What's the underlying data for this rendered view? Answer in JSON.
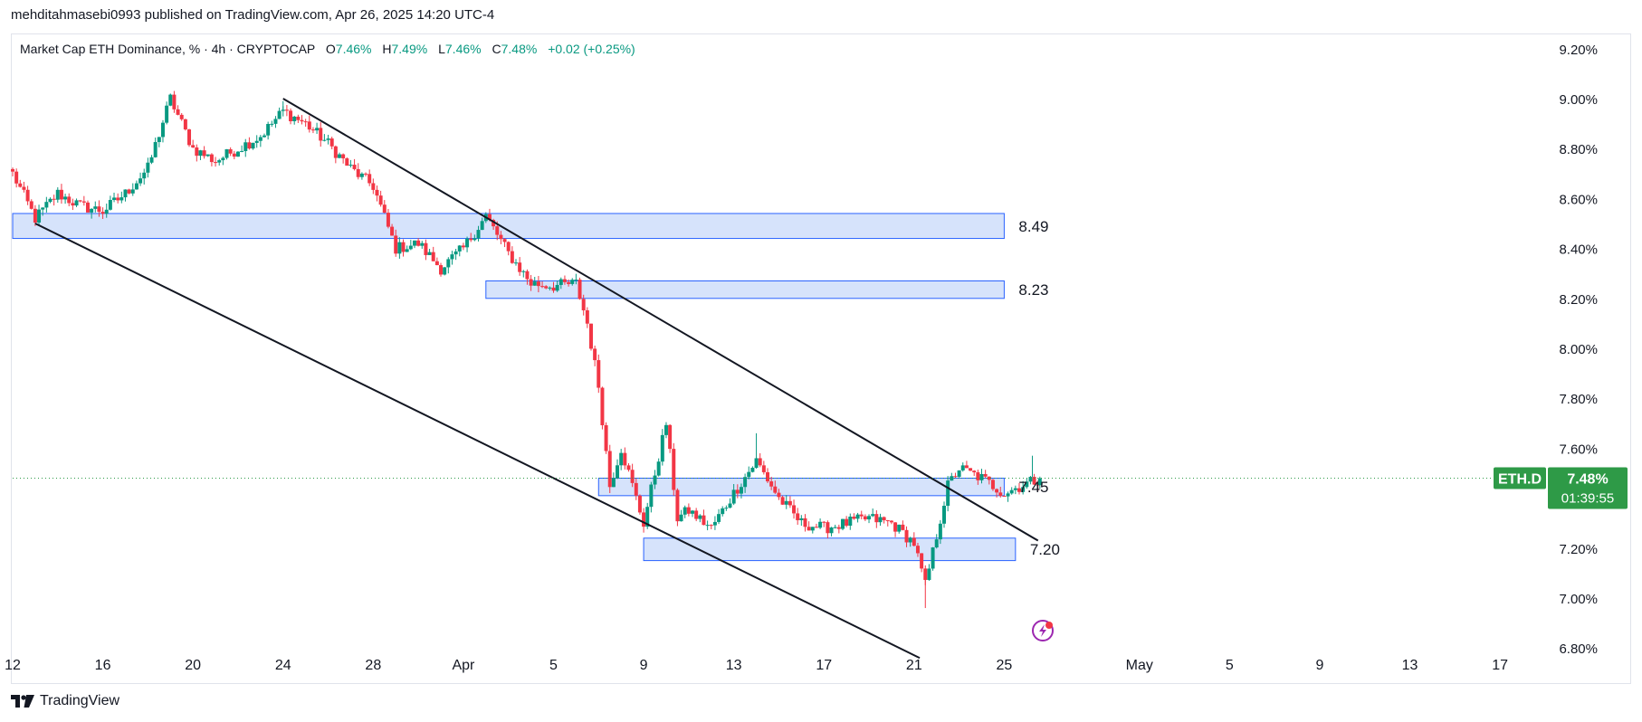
{
  "header": {
    "text": "mehditahmasebi0993 published on TradingView.com, Apr 26, 2025 14:20 UTC-4"
  },
  "legend": {
    "symbol": "Market Cap ETH Dominance, % · 4h · CRYPTOCAP",
    "open_label": "O",
    "open": "7.46%",
    "high_label": "H",
    "high": "7.49%",
    "low_label": "L",
    "low": "7.46%",
    "close_label": "C",
    "close": "7.48%",
    "change": "+0.02 (+0.25%)"
  },
  "footer": {
    "brand": "TradingView"
  },
  "colors": {
    "up": "#089981",
    "down": "#f23645",
    "zone_fill": "#d1e0fb",
    "zone_border": "#2962ff",
    "trendline": "#131722",
    "badge": "#2e9a47"
  },
  "price_badge": {
    "symbol": "ETH.D",
    "price": "7.48%",
    "countdown": "01:39:55"
  },
  "chart_data": {
    "type": "candlestick",
    "interval": "4h",
    "y_axis": {
      "side": "right",
      "ylim": [
        6.75,
        9.25
      ],
      "ticks": [
        6.8,
        7.0,
        7.2,
        7.4,
        7.6,
        7.8,
        8.0,
        8.2,
        8.4,
        8.6,
        8.8,
        9.0,
        9.2
      ],
      "tick_labels": [
        "6.80%",
        "7.00%",
        "7.20%",
        "7.40%",
        "7.60%",
        "7.80%",
        "8.00%",
        "8.20%",
        "8.40%",
        "8.60%",
        "8.80%",
        "9.00%",
        "9.20%"
      ]
    },
    "x_axis": {
      "range": [
        "2025-03-12",
        "2025-05-18"
      ],
      "ticks": [
        {
          "date": "2025-03-12",
          "label": "12"
        },
        {
          "date": "2025-03-16",
          "label": "16"
        },
        {
          "date": "2025-03-20",
          "label": "20"
        },
        {
          "date": "2025-03-24",
          "label": "24"
        },
        {
          "date": "2025-03-28",
          "label": "28"
        },
        {
          "date": "2025-04-01",
          "label": "Apr"
        },
        {
          "date": "2025-04-05",
          "label": "5"
        },
        {
          "date": "2025-04-09",
          "label": "9"
        },
        {
          "date": "2025-04-13",
          "label": "13"
        },
        {
          "date": "2025-04-17",
          "label": "17"
        },
        {
          "date": "2025-04-21",
          "label": "21"
        },
        {
          "date": "2025-04-25",
          "label": "25"
        },
        {
          "date": "2025-05-01",
          "label": "May"
        },
        {
          "date": "2025-05-05",
          "label": "5"
        },
        {
          "date": "2025-05-09",
          "label": "9"
        },
        {
          "date": "2025-05-13",
          "label": "13"
        },
        {
          "date": "2025-05-17",
          "label": "17"
        }
      ]
    },
    "price_path": [
      [
        "2025-03-12",
        8.7
      ],
      [
        "2025-03-13",
        8.52
      ],
      [
        "2025-03-14",
        8.62
      ],
      [
        "2025-03-15",
        8.57
      ],
      [
        "2025-03-16",
        8.55
      ],
      [
        "2025-03-17",
        8.62
      ],
      [
        "2025-03-18",
        8.72
      ],
      [
        "2025-03-19",
        9.0
      ],
      [
        "2025-03-20",
        8.8
      ],
      [
        "2025-03-21",
        8.75
      ],
      [
        "2025-03-22",
        8.8
      ],
      [
        "2025-03-23",
        8.85
      ],
      [
        "2025-03-24",
        8.95
      ],
      [
        "2025-03-25",
        8.9
      ],
      [
        "2025-03-26",
        8.82
      ],
      [
        "2025-03-27",
        8.72
      ],
      [
        "2025-03-28",
        8.65
      ],
      [
        "2025-03-29",
        8.4
      ],
      [
        "2025-03-30",
        8.42
      ],
      [
        "2025-03-31",
        8.32
      ],
      [
        "2025-04-01",
        8.4
      ],
      [
        "2025-04-02",
        8.53
      ],
      [
        "2025-04-03",
        8.38
      ],
      [
        "2025-04-04",
        8.26
      ],
      [
        "2025-04-05",
        8.25
      ],
      [
        "2025-04-06",
        8.26
      ],
      [
        "2025-04-06T12:00",
        8.1
      ],
      [
        "2025-04-07",
        7.85
      ],
      [
        "2025-04-07T12:00",
        7.45
      ],
      [
        "2025-04-08",
        7.6
      ],
      [
        "2025-04-09",
        7.3
      ],
      [
        "2025-04-10",
        7.7
      ],
      [
        "2025-04-10T12:00",
        7.32
      ],
      [
        "2025-04-11",
        7.35
      ],
      [
        "2025-04-12",
        7.28
      ],
      [
        "2025-04-13",
        7.42
      ],
      [
        "2025-04-14",
        7.55
      ],
      [
        "2025-04-15",
        7.4
      ],
      [
        "2025-04-16",
        7.3
      ],
      [
        "2025-04-17",
        7.28
      ],
      [
        "2025-04-18",
        7.3
      ],
      [
        "2025-04-19",
        7.32
      ],
      [
        "2025-04-20",
        7.3
      ],
      [
        "2025-04-21",
        7.22
      ],
      [
        "2025-04-21T12:00",
        7.05
      ],
      [
        "2025-04-22",
        7.25
      ],
      [
        "2025-04-22T12:00",
        7.45
      ],
      [
        "2025-04-23",
        7.52
      ],
      [
        "2025-04-24",
        7.48
      ],
      [
        "2025-04-25",
        7.42
      ],
      [
        "2025-04-26",
        7.46
      ],
      [
        "2025-04-26T14:00",
        7.48
      ]
    ],
    "marked_extremes": [
      {
        "date": "2025-03-19",
        "value": 9.02
      },
      {
        "date": "2025-03-24",
        "value": 8.99
      },
      {
        "date": "2025-04-14",
        "value": 7.66
      },
      {
        "date": "2025-04-21T12:00",
        "value": 6.96
      },
      {
        "date": "2025-04-26T06:00",
        "value": 7.57
      }
    ],
    "zones": [
      {
        "label": "8.49",
        "start": "2025-03-12",
        "end": "2025-04-25",
        "low": 8.44,
        "high": 8.54
      },
      {
        "label": "8.23",
        "start": "2025-04-02",
        "end": "2025-04-25",
        "low": 8.2,
        "high": 8.27
      },
      {
        "label": "7.45",
        "start": "2025-04-07",
        "end": "2025-04-25",
        "low": 7.41,
        "high": 7.48
      },
      {
        "label": "7.20",
        "start": "2025-04-09",
        "end": "2025-04-25T12:00",
        "low": 7.15,
        "high": 7.24
      }
    ],
    "trendlines": [
      {
        "name": "upper",
        "p1": {
          "date": "2025-03-24",
          "value": 9.0
        },
        "p2": {
          "date": "2025-04-26T12:00",
          "value": 7.23
        }
      },
      {
        "name": "lower",
        "p1": {
          "date": "2025-03-13",
          "value": 8.5
        },
        "p2": {
          "date": "2025-04-21T06:00",
          "value": 6.76
        }
      }
    ],
    "last_price": 7.48
  }
}
